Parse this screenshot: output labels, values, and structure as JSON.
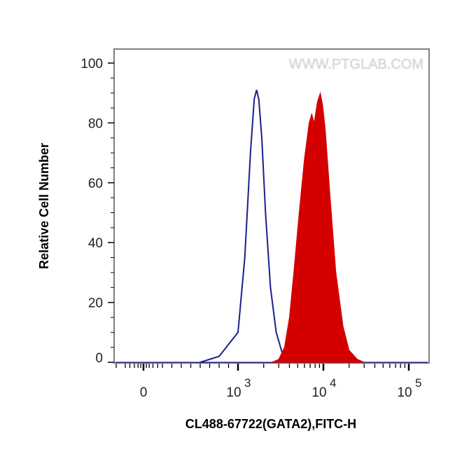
{
  "chart_data": {
    "type": "area",
    "title": "",
    "xlabel": "CL488-67722(GATA2),FITC-H",
    "ylabel": "Relative Cell Number",
    "x_scale": "biexponential (log above 10^3)",
    "x_ticks": [
      {
        "value": 0,
        "label": "0",
        "exp": ""
      },
      {
        "value": 1000,
        "label": "10",
        "exp": "3"
      },
      {
        "value": 10000,
        "label": "10",
        "exp": "4"
      },
      {
        "value": 100000,
        "label": "10",
        "exp": "5"
      }
    ],
    "y_ticks": [
      "0",
      "20",
      "40",
      "60",
      "80",
      "100"
    ],
    "ylim": [
      0,
      100
    ],
    "grid": false,
    "watermark": "WWW.PTGLAB.COM",
    "series": [
      {
        "style": "outline",
        "color": "#1a1f8c",
        "points": [
          [
            600,
            0
          ],
          [
            800,
            2
          ],
          [
            1000,
            10
          ],
          [
            1200,
            35
          ],
          [
            1400,
            70
          ],
          [
            1550,
            88
          ],
          [
            1650,
            91
          ],
          [
            1750,
            88
          ],
          [
            1900,
            75
          ],
          [
            2100,
            50
          ],
          [
            2400,
            25
          ],
          [
            2800,
            10
          ],
          [
            3300,
            3
          ],
          [
            4000,
            1
          ],
          [
            5000,
            0
          ]
        ]
      },
      {
        "style": "filled",
        "color": "#d40000",
        "points": [
          [
            2500,
            0
          ],
          [
            3000,
            1
          ],
          [
            3500,
            5
          ],
          [
            4000,
            15
          ],
          [
            4500,
            30
          ],
          [
            5200,
            50
          ],
          [
            6000,
            68
          ],
          [
            6800,
            80
          ],
          [
            7300,
            83
          ],
          [
            7800,
            80
          ],
          [
            8500,
            87
          ],
          [
            9200,
            90
          ],
          [
            9800,
            86
          ],
          [
            10500,
            78
          ],
          [
            12000,
            55
          ],
          [
            14000,
            30
          ],
          [
            17000,
            12
          ],
          [
            20000,
            4
          ],
          [
            25000,
            1
          ],
          [
            30000,
            0
          ]
        ]
      }
    ]
  }
}
